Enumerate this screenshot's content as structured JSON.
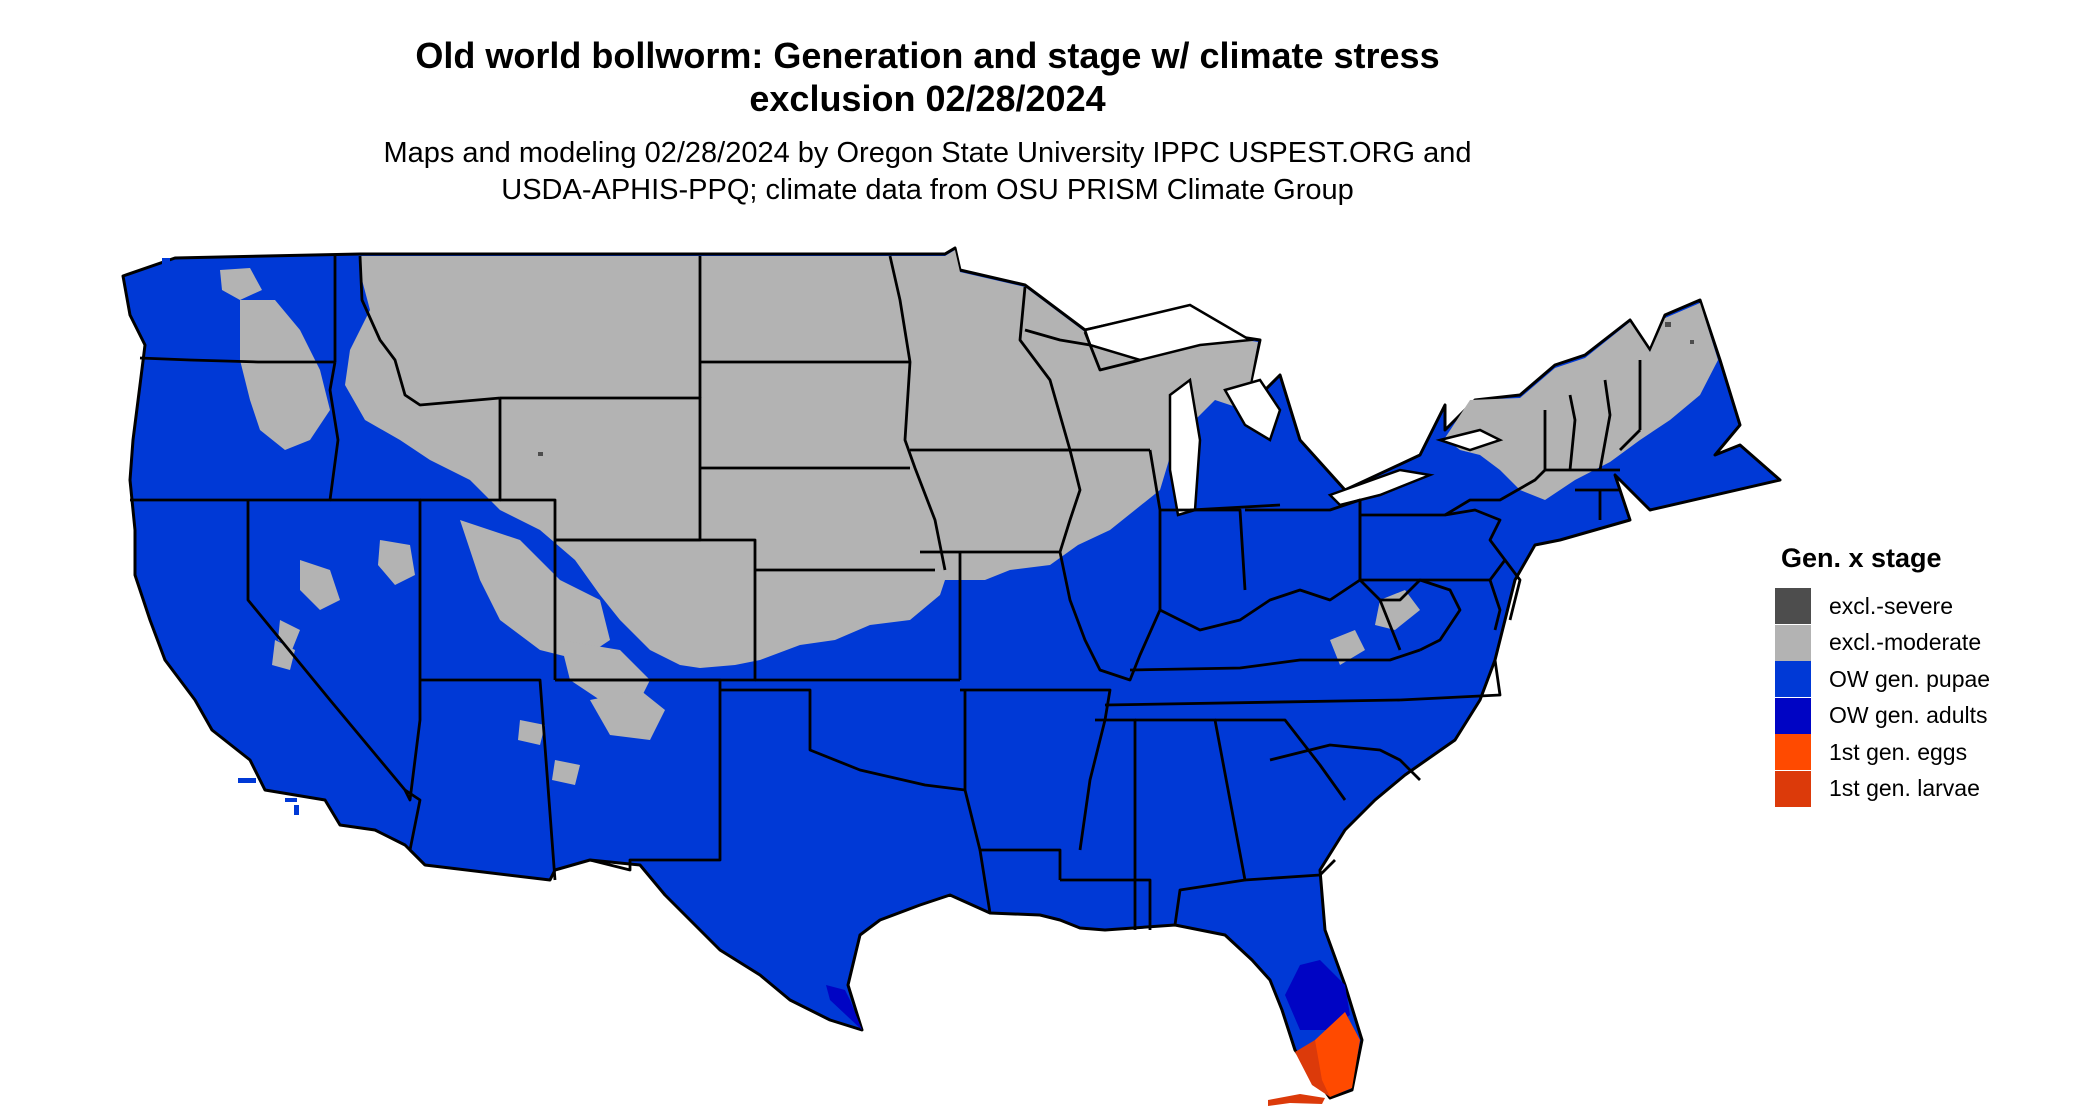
{
  "title_line1": "Old world bollworm: Generation and stage w/ climate stress",
  "title_line2": "exclusion 02/28/2024",
  "subtitle_line1": "Maps and modeling 02/28/2024 by Oregon State University IPPC USPEST.ORG and",
  "subtitle_line2": "USDA-APHIS-PPQ; climate data from OSU PRISM Climate Group",
  "legend": {
    "title": "Gen. x stage",
    "items": [
      {
        "label": "excl.-severe",
        "color": "#4d4d4d"
      },
      {
        "label": "excl.-moderate",
        "color": "#b3b3b3"
      },
      {
        "label": "OW gen. pupae",
        "color": "#0039d6"
      },
      {
        "label": "OW gen. adults",
        "color": "#0004c4"
      },
      {
        "label": "1st gen. eggs",
        "color": "#ff4a00"
      },
      {
        "label": "1st gen. larvae",
        "color": "#dc3a0a"
      }
    ]
  },
  "colors": {
    "pupae": "#0039d6",
    "adults": "#0004c4",
    "eggs": "#ff4a00",
    "larvae": "#dc3a0a",
    "moderate": "#b3b3b3",
    "severe": "#4d4d4d",
    "border": "#000000"
  }
}
